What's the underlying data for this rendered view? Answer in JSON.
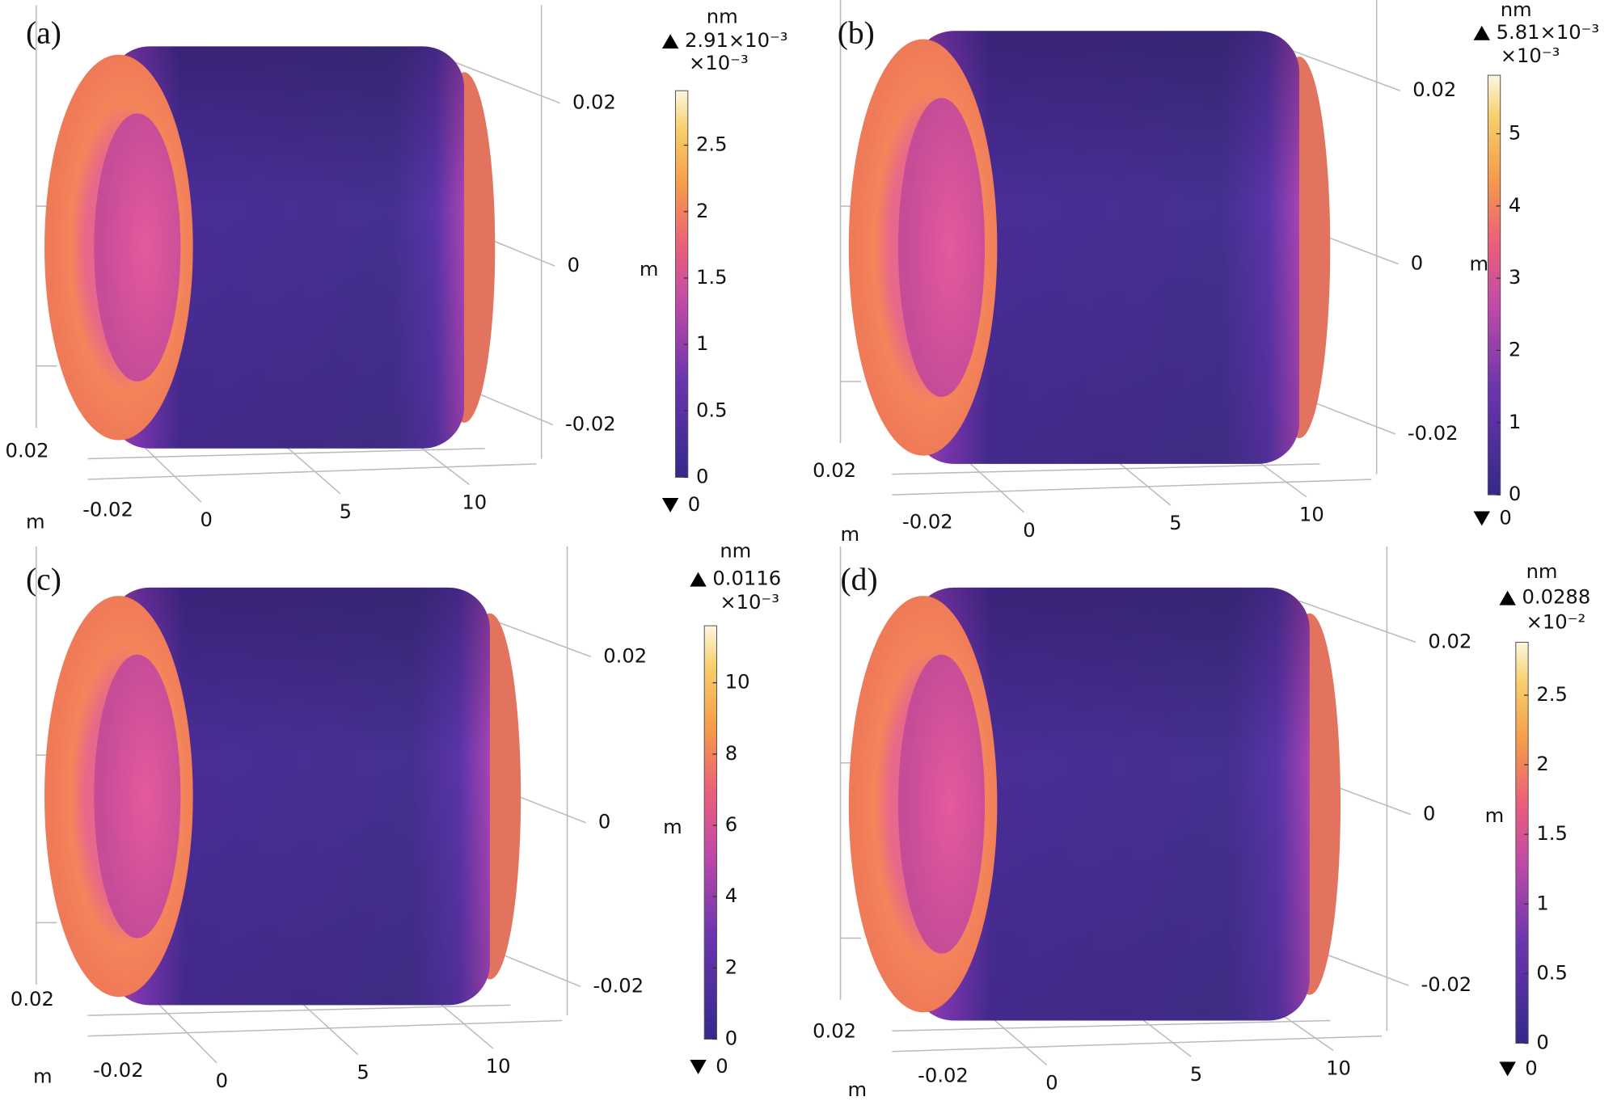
{
  "panels": [
    {
      "label": "(a)",
      "unit": "nm",
      "max": "2.91×10⁻³",
      "multiplier": "×10⁻³",
      "min": "0",
      "colorbar_range": [
        0,
        2.91
      ],
      "colorbar_ticks": [
        0,
        0.5,
        1,
        1.5,
        2,
        2.5
      ],
      "z_axis_label": "m",
      "z_ticks": [
        "0.02",
        "0",
        "-0.02"
      ],
      "y_ticks": [
        "0.02",
        "-0.02"
      ],
      "y_axis_label": "m",
      "x_ticks": [
        "0",
        "5",
        "10"
      ]
    },
    {
      "label": "(b)",
      "unit": "nm",
      "max": "5.81×10⁻³",
      "multiplier": "×10⁻³",
      "min": "0",
      "colorbar_range": [
        0,
        5.81
      ],
      "colorbar_ticks": [
        0,
        1,
        2,
        3,
        4,
        5
      ],
      "z_axis_label": "m",
      "z_ticks": [
        "0.02",
        "0",
        "-0.02"
      ],
      "y_ticks": [
        "0.02",
        "-0.02"
      ],
      "y_axis_label": "m",
      "x_ticks": [
        "0",
        "5",
        "10"
      ]
    },
    {
      "label": "(c)",
      "unit": "nm",
      "max": "0.0116",
      "multiplier": "×10⁻³",
      "min": "0",
      "colorbar_range": [
        0,
        11.6
      ],
      "colorbar_ticks": [
        0,
        2,
        4,
        6,
        8,
        10
      ],
      "z_axis_label": "m",
      "z_ticks": [
        "0.02",
        "0",
        "-0.02"
      ],
      "y_ticks": [
        "0.02",
        "-0.02"
      ],
      "y_axis_label": "m",
      "x_ticks": [
        "0",
        "5",
        "10"
      ]
    },
    {
      "label": "(d)",
      "unit": "nm",
      "max": "0.0288",
      "multiplier": "×10⁻²",
      "min": "0",
      "colorbar_range": [
        0,
        2.88
      ],
      "colorbar_ticks": [
        0,
        0.5,
        1,
        1.5,
        2,
        2.5
      ],
      "z_axis_label": "m",
      "z_ticks": [
        "0.02",
        "0",
        "-0.02"
      ],
      "y_ticks": [
        "0.02",
        "-0.02"
      ],
      "y_axis_label": "m",
      "x_ticks": [
        "0",
        "5",
        "10"
      ]
    }
  ]
}
